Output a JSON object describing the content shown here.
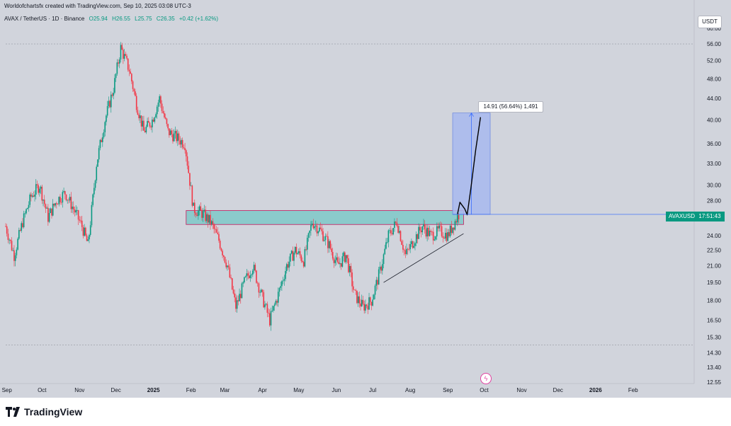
{
  "header": {
    "credit": "Worldofchartsfx created with TradingView.com, Sep 10, 2025 03:08 UTC-3",
    "symbol": "AVAX / TetherUS · 1D · Binance",
    "open": "O25.94",
    "high": "H26.55",
    "low": "L25.75",
    "close": "C26.35",
    "change": "+0.42 (+1.62%)"
  },
  "currency": "USDT",
  "price_tag": {
    "symbol": "AVAXUSDT",
    "countdown": "17:51:43"
  },
  "measure_label": "14.91 (56.64%) 1,491",
  "footer": {
    "brand": "TradingView"
  },
  "colors": {
    "up": "#089981",
    "down": "#f23645",
    "background": "#d1d4dc",
    "zone": "#7fc8c8",
    "target": "#a8b9ef"
  },
  "chart_data": {
    "type": "candlestick",
    "y_scale": "log",
    "y_ticks": [
      "60.00",
      "56.00",
      "52.00",
      "48.00",
      "44.00",
      "40.00",
      "36.00",
      "33.00",
      "30.00",
      "28.00",
      "26.00",
      "24.00",
      "22.50",
      "21.00",
      "19.50",
      "18.00",
      "16.50",
      "15.30",
      "14.30",
      "13.40",
      "12.55"
    ],
    "x_ticks": [
      "Sep",
      "Oct",
      "Nov",
      "Dec",
      "2025",
      "Feb",
      "Mar",
      "Apr",
      "May",
      "Jun",
      "Jul",
      "Aug",
      "Sep",
      "Oct",
      "Nov",
      "Dec",
      "2026",
      "Feb"
    ],
    "ylim": [
      12.55,
      60.0
    ],
    "path": [
      [
        "2024-09-01",
        25.0
      ],
      [
        "2024-09-08",
        22.0
      ],
      [
        "2024-09-15",
        25.5
      ],
      [
        "2024-09-22",
        28.5
      ],
      [
        "2024-09-29",
        30.0
      ],
      [
        "2024-10-06",
        26.0
      ],
      [
        "2024-10-13",
        28.0
      ],
      [
        "2024-10-20",
        29.0
      ],
      [
        "2024-10-27",
        27.0
      ],
      [
        "2024-11-03",
        25.0
      ],
      [
        "2024-11-08",
        23.0
      ],
      [
        "2024-11-15",
        33.0
      ],
      [
        "2024-11-22",
        40.0
      ],
      [
        "2024-11-29",
        46.0
      ],
      [
        "2024-12-05",
        55.0
      ],
      [
        "2024-12-12",
        50.0
      ],
      [
        "2024-12-18",
        43.0
      ],
      [
        "2024-12-24",
        38.0
      ],
      [
        "2024-12-31",
        40.0
      ],
      [
        "2025-01-06",
        44.0
      ],
      [
        "2025-01-13",
        38.0
      ],
      [
        "2025-01-20",
        37.0
      ],
      [
        "2025-01-27",
        36.0
      ],
      [
        "2025-02-03",
        27.0
      ],
      [
        "2025-02-10",
        26.5
      ],
      [
        "2025-02-17",
        25.5
      ],
      [
        "2025-02-24",
        23.5
      ],
      [
        "2025-03-03",
        21.0
      ],
      [
        "2025-03-10",
        17.5
      ],
      [
        "2025-03-17",
        19.5
      ],
      [
        "2025-03-24",
        21.0
      ],
      [
        "2025-03-31",
        18.5
      ],
      [
        "2025-04-07",
        16.5
      ],
      [
        "2025-04-14",
        18.5
      ],
      [
        "2025-04-21",
        21.0
      ],
      [
        "2025-04-28",
        22.5
      ],
      [
        "2025-05-05",
        21.5
      ],
      [
        "2025-05-12",
        25.5
      ],
      [
        "2025-05-19",
        24.5
      ],
      [
        "2025-05-26",
        23.0
      ],
      [
        "2025-06-02",
        21.0
      ],
      [
        "2025-06-09",
        22.0
      ],
      [
        "2025-06-16",
        18.5
      ],
      [
        "2025-06-23",
        17.5
      ],
      [
        "2025-06-30",
        18.0
      ],
      [
        "2025-07-07",
        20.5
      ],
      [
        "2025-07-14",
        24.0
      ],
      [
        "2025-07-21",
        25.5
      ],
      [
        "2025-07-28",
        22.0
      ],
      [
        "2025-08-04",
        23.5
      ],
      [
        "2025-08-11",
        25.0
      ],
      [
        "2025-08-18",
        24.0
      ],
      [
        "2025-08-25",
        24.5
      ],
      [
        "2025-09-01",
        24.0
      ],
      [
        "2025-09-10",
        26.35
      ]
    ],
    "annotations": {
      "resistance_zone": {
        "from": "2025-01-28",
        "to": "2025-09-14",
        "low": 25.2,
        "high": 26.8
      },
      "trendline_support": [
        [
          "2025-07-10",
          19.5
        ],
        [
          "2025-09-14",
          24.2
        ]
      ],
      "target_box": {
        "from": "2025-09-05",
        "to": "2025-10-06",
        "low": 26.35,
        "high": 41.26,
        "label": "14.91 (56.64%) 1,491"
      },
      "projection_path": [
        [
          "2025-09-09",
          26.35
        ],
        [
          "2025-09-11",
          27.8
        ],
        [
          "2025-09-15",
          27.0
        ],
        [
          "2025-09-17",
          26.3
        ],
        [
          "2025-09-20",
          29.5
        ],
        [
          "2025-09-24",
          35.0
        ],
        [
          "2025-09-28",
          40.5
        ]
      ]
    }
  }
}
